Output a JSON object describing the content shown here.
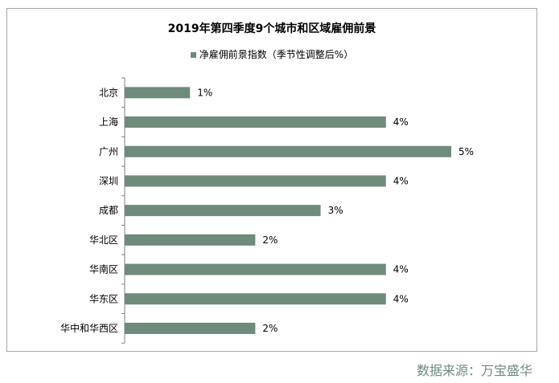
{
  "chart_data": {
    "type": "bar",
    "orientation": "horizontal",
    "title": "2019年第四季度9个城市和区域雇佣前景",
    "categories": [
      "北京",
      "上海",
      "广州",
      "深圳",
      "成都",
      "华北区",
      "华南区",
      "华东区",
      "华中和华西区"
    ],
    "series": [
      {
        "name": "净雇佣前景指数（季节性调整后%）",
        "values": [
          1,
          4,
          5,
          4,
          3,
          2,
          4,
          4,
          2
        ],
        "color": "#6e8b7c"
      }
    ],
    "data_labels": [
      "1%",
      "4%",
      "5%",
      "4%",
      "3%",
      "2%",
      "4%",
      "4%",
      "2%"
    ],
    "xlim": [
      0,
      5
    ],
    "grid": false,
    "legend_position": "top"
  },
  "source": "数据来源：万宝盛华"
}
